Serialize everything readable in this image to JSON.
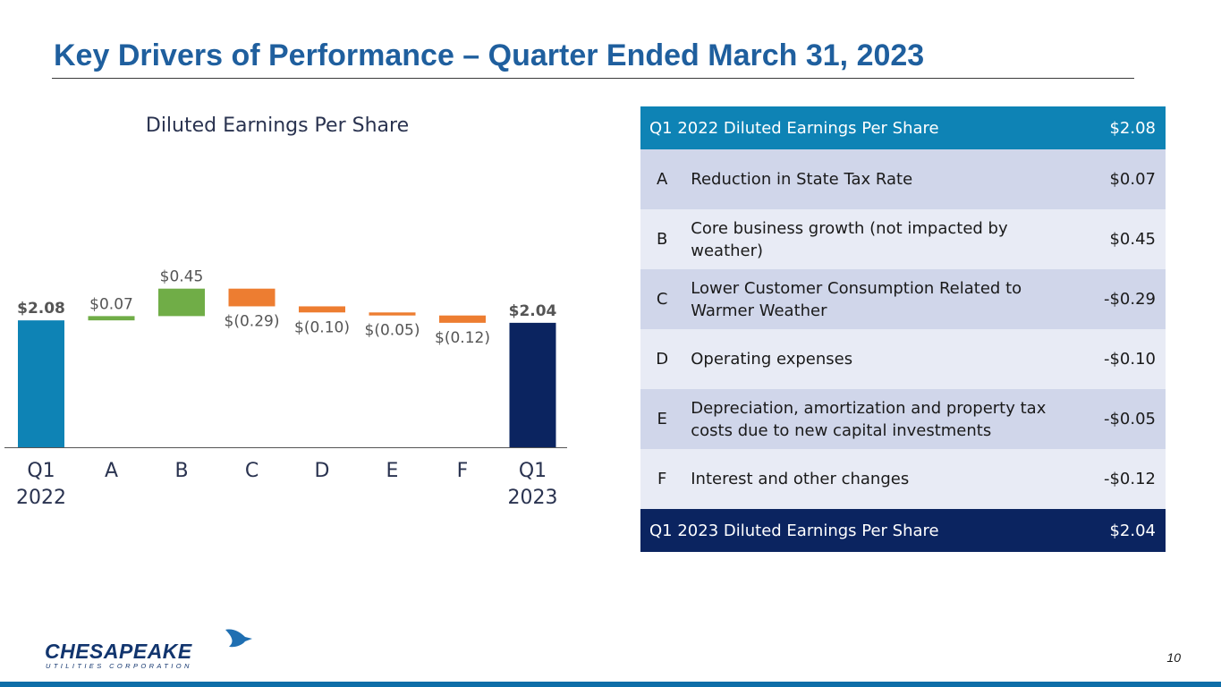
{
  "slide": {
    "title": "Key Drivers of Performance – Quarter Ended March 31, 2023",
    "page_number": "10"
  },
  "logo": {
    "main_text": "CHESAPEAKE",
    "sub_text": "UTILITIES CORPORATION"
  },
  "chart_data": {
    "type": "waterfall",
    "title": "Diluted Earnings Per Share",
    "categories": [
      "Q1\n2022",
      "A",
      "B",
      "C",
      "D",
      "E",
      "F",
      "Q1\n2023"
    ],
    "values": [
      2.08,
      0.07,
      0.45,
      -0.29,
      -0.1,
      -0.05,
      -0.12,
      2.04
    ],
    "kinds": [
      "total",
      "increase",
      "increase",
      "decrease",
      "decrease",
      "decrease",
      "decrease",
      "total"
    ],
    "data_labels": [
      "$2.08",
      "$0.07",
      "$0.45",
      "$(0.29)",
      "$(0.10)",
      "$(0.05)",
      "$(0.12)",
      "$2.04"
    ],
    "colors": {
      "start_total": "#0E83B5",
      "end_total": "#0B2460",
      "increase": "#70AD47",
      "decrease": "#ED7D31"
    }
  },
  "table": {
    "header": {
      "label": "Q1 2022 Diluted Earnings Per Share",
      "value": "$2.08"
    },
    "rows": [
      {
        "letter": "A",
        "description": "Reduction in State Tax Rate",
        "value": "$0.07"
      },
      {
        "letter": "B",
        "description": "Core business growth (not impacted by weather)",
        "value": "$0.45"
      },
      {
        "letter": "C",
        "description": "Lower Customer Consumption Related to Warmer Weather",
        "value": "-$0.29"
      },
      {
        "letter": "D",
        "description": "Operating expenses",
        "value": "-$0.10"
      },
      {
        "letter": "E",
        "description": "Depreciation, amortization and property tax costs due to new capital investments",
        "value": "-$0.05"
      },
      {
        "letter": "F",
        "description": "Interest and other changes",
        "value": "-$0.12"
      }
    ],
    "footer": {
      "label": "Q1 2023 Diluted Earnings Per Share",
      "value": "$2.04"
    }
  }
}
